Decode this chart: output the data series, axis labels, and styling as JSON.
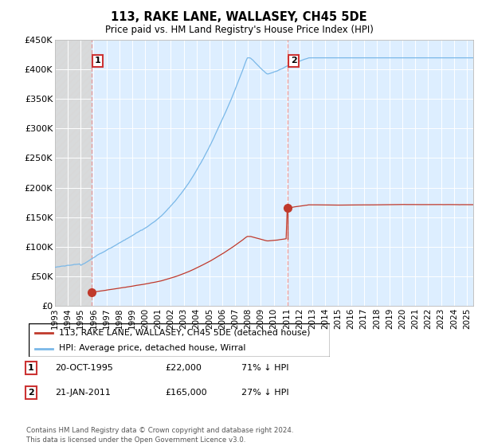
{
  "title": "113, RAKE LANE, WALLASEY, CH45 5DE",
  "subtitle": "Price paid vs. HM Land Registry's House Price Index (HPI)",
  "ylim": [
    0,
    450000
  ],
  "yticks": [
    0,
    50000,
    100000,
    150000,
    200000,
    250000,
    300000,
    350000,
    400000,
    450000
  ],
  "ytick_labels": [
    "£0",
    "£50K",
    "£100K",
    "£150K",
    "£200K",
    "£250K",
    "£300K",
    "£350K",
    "£400K",
    "£450K"
  ],
  "transaction1": {
    "date_num": 1995.82,
    "price": 22000,
    "label": "1"
  },
  "transaction2": {
    "date_num": 2011.06,
    "price": 165000,
    "label": "2"
  },
  "hpi_line_color": "#7ab8e8",
  "price_line_color": "#c0392b",
  "marker_color": "#c0392b",
  "vline_color": "#e8a0a0",
  "chart_bg_color": "#ddeeff",
  "hatch_bg_color": "#d8d8d8",
  "legend_label1": "113, RAKE LANE, WALLASEY, CH45 5DE (detached house)",
  "legend_label2": "HPI: Average price, detached house, Wirral",
  "table_row1": [
    "1",
    "20-OCT-1995",
    "£22,000",
    "71% ↓ HPI"
  ],
  "table_row2": [
    "2",
    "21-JAN-2011",
    "£165,000",
    "27% ↓ HPI"
  ],
  "footnote": "Contains HM Land Registry data © Crown copyright and database right 2024.\nThis data is licensed under the Open Government Licence v3.0.",
  "xlim_start": 1993.0,
  "xlim_end": 2025.5,
  "xticks": [
    1993,
    1994,
    1995,
    1996,
    1997,
    1998,
    1999,
    2000,
    2001,
    2002,
    2003,
    2004,
    2005,
    2006,
    2007,
    2008,
    2009,
    2010,
    2011,
    2012,
    2013,
    2014,
    2015,
    2016,
    2017,
    2018,
    2019,
    2020,
    2021,
    2022,
    2023,
    2024,
    2025
  ]
}
